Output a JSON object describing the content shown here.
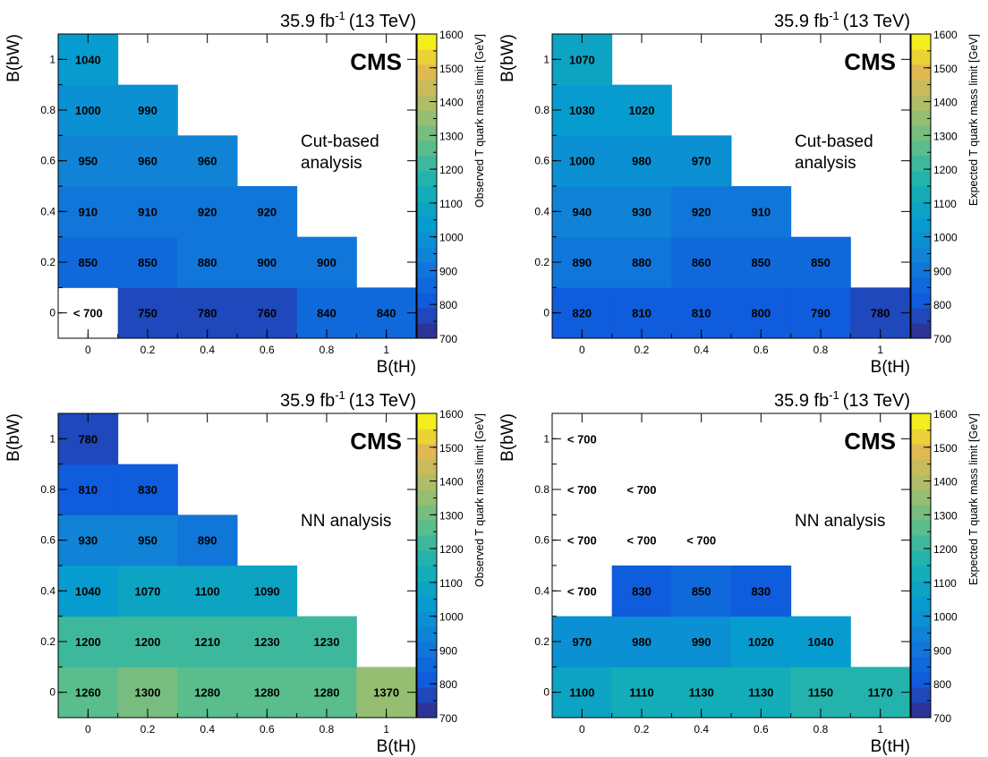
{
  "chart_data": [
    {
      "type": "heatmap",
      "lumi_main": "35.9 fb",
      "lumi_exp": "-1",
      "lumi_tail": "(13 TeV)",
      "experiment": "CMS",
      "annotation": [
        "Cut-based",
        "analysis"
      ],
      "xlabel": "B(tH)",
      "ylabel": "B(bW)",
      "zlabel": "Observed T quark mass limit [GeV]",
      "x_ticks": [
        "0",
        "0.2",
        "0.4",
        "0.6",
        "0.8",
        "1"
      ],
      "y_ticks": [
        "0",
        "0.2",
        "0.4",
        "0.6",
        "0.8",
        "1"
      ],
      "z_ticks": [
        "700",
        "800",
        "900",
        "1000",
        "1100",
        "1200",
        "1300",
        "1400",
        "1500",
        "1600"
      ],
      "zlim": [
        700,
        1600
      ],
      "cells": [
        {
          "x": 0,
          "y": 0,
          "label": "< 700",
          "value": null
        },
        {
          "x": 0.2,
          "y": 0,
          "label": "750",
          "value": 750
        },
        {
          "x": 0.4,
          "y": 0,
          "label": "780",
          "value": 780
        },
        {
          "x": 0.6,
          "y": 0,
          "label": "760",
          "value": 760
        },
        {
          "x": 0.8,
          "y": 0,
          "label": "840",
          "value": 840
        },
        {
          "x": 1,
          "y": 0,
          "label": "840",
          "value": 840
        },
        {
          "x": 0,
          "y": 0.2,
          "label": "850",
          "value": 850
        },
        {
          "x": 0.2,
          "y": 0.2,
          "label": "850",
          "value": 850
        },
        {
          "x": 0.4,
          "y": 0.2,
          "label": "880",
          "value": 880
        },
        {
          "x": 0.6,
          "y": 0.2,
          "label": "900",
          "value": 900
        },
        {
          "x": 0.8,
          "y": 0.2,
          "label": "900",
          "value": 900
        },
        {
          "x": 0,
          "y": 0.4,
          "label": "910",
          "value": 910
        },
        {
          "x": 0.2,
          "y": 0.4,
          "label": "910",
          "value": 910
        },
        {
          "x": 0.4,
          "y": 0.4,
          "label": "920",
          "value": 920
        },
        {
          "x": 0.6,
          "y": 0.4,
          "label": "920",
          "value": 920
        },
        {
          "x": 0,
          "y": 0.6,
          "label": "950",
          "value": 950
        },
        {
          "x": 0.2,
          "y": 0.6,
          "label": "960",
          "value": 960
        },
        {
          "x": 0.4,
          "y": 0.6,
          "label": "960",
          "value": 960
        },
        {
          "x": 0,
          "y": 0.8,
          "label": "1000",
          "value": 1000
        },
        {
          "x": 0.2,
          "y": 0.8,
          "label": "990",
          "value": 990
        },
        {
          "x": 0,
          "y": 1,
          "label": "1040",
          "value": 1040
        }
      ]
    },
    {
      "type": "heatmap",
      "lumi_main": "35.9 fb",
      "lumi_exp": "-1",
      "lumi_tail": "(13 TeV)",
      "experiment": "CMS",
      "annotation": [
        "Cut-based",
        "analysis"
      ],
      "xlabel": "B(tH)",
      "ylabel": "B(bW)",
      "zlabel": "Expected T quark mass limit [GeV]",
      "x_ticks": [
        "0",
        "0.2",
        "0.4",
        "0.6",
        "0.8",
        "1"
      ],
      "y_ticks": [
        "0",
        "0.2",
        "0.4",
        "0.6",
        "0.8",
        "1"
      ],
      "z_ticks": [
        "700",
        "800",
        "900",
        "1000",
        "1100",
        "1200",
        "1300",
        "1400",
        "1500",
        "1600"
      ],
      "zlim": [
        700,
        1600
      ],
      "cells": [
        {
          "x": 0,
          "y": 0,
          "label": "820",
          "value": 820
        },
        {
          "x": 0.2,
          "y": 0,
          "label": "810",
          "value": 810
        },
        {
          "x": 0.4,
          "y": 0,
          "label": "810",
          "value": 810
        },
        {
          "x": 0.6,
          "y": 0,
          "label": "800",
          "value": 800
        },
        {
          "x": 0.8,
          "y": 0,
          "label": "790",
          "value": 790
        },
        {
          "x": 1,
          "y": 0,
          "label": "780",
          "value": 780
        },
        {
          "x": 0,
          "y": 0.2,
          "label": "890",
          "value": 890
        },
        {
          "x": 0.2,
          "y": 0.2,
          "label": "880",
          "value": 880
        },
        {
          "x": 0.4,
          "y": 0.2,
          "label": "860",
          "value": 860
        },
        {
          "x": 0.6,
          "y": 0.2,
          "label": "850",
          "value": 850
        },
        {
          "x": 0.8,
          "y": 0.2,
          "label": "850",
          "value": 850
        },
        {
          "x": 0,
          "y": 0.4,
          "label": "940",
          "value": 940
        },
        {
          "x": 0.2,
          "y": 0.4,
          "label": "930",
          "value": 930
        },
        {
          "x": 0.4,
          "y": 0.4,
          "label": "920",
          "value": 920
        },
        {
          "x": 0.6,
          "y": 0.4,
          "label": "910",
          "value": 910
        },
        {
          "x": 0,
          "y": 0.6,
          "label": "1000",
          "value": 1000
        },
        {
          "x": 0.2,
          "y": 0.6,
          "label": "980",
          "value": 980
        },
        {
          "x": 0.4,
          "y": 0.6,
          "label": "970",
          "value": 970
        },
        {
          "x": 0,
          "y": 0.8,
          "label": "1030",
          "value": 1030
        },
        {
          "x": 0.2,
          "y": 0.8,
          "label": "1020",
          "value": 1020
        },
        {
          "x": 0,
          "y": 1,
          "label": "1070",
          "value": 1070
        }
      ]
    },
    {
      "type": "heatmap",
      "lumi_main": "35.9 fb",
      "lumi_exp": "-1",
      "lumi_tail": "(13 TeV)",
      "experiment": "CMS",
      "annotation": [
        "NN analysis"
      ],
      "xlabel": "B(tH)",
      "ylabel": "B(bW)",
      "zlabel": "Observed T quark mass limit [GeV]",
      "x_ticks": [
        "0",
        "0.2",
        "0.4",
        "0.6",
        "0.8",
        "1"
      ],
      "y_ticks": [
        "0",
        "0.2",
        "0.4",
        "0.6",
        "0.8",
        "1"
      ],
      "z_ticks": [
        "700",
        "800",
        "900",
        "1000",
        "1100",
        "1200",
        "1300",
        "1400",
        "1500",
        "1600"
      ],
      "zlim": [
        700,
        1600
      ],
      "cells": [
        {
          "x": 0,
          "y": 0,
          "label": "1260",
          "value": 1260
        },
        {
          "x": 0.2,
          "y": 0,
          "label": "1300",
          "value": 1300
        },
        {
          "x": 0.4,
          "y": 0,
          "label": "1280",
          "value": 1280
        },
        {
          "x": 0.6,
          "y": 0,
          "label": "1280",
          "value": 1280
        },
        {
          "x": 0.8,
          "y": 0,
          "label": "1280",
          "value": 1280
        },
        {
          "x": 1,
          "y": 0,
          "label": "1370",
          "value": 1370
        },
        {
          "x": 0,
          "y": 0.2,
          "label": "1200",
          "value": 1200
        },
        {
          "x": 0.2,
          "y": 0.2,
          "label": "1200",
          "value": 1200
        },
        {
          "x": 0.4,
          "y": 0.2,
          "label": "1210",
          "value": 1210
        },
        {
          "x": 0.6,
          "y": 0.2,
          "label": "1230",
          "value": 1230
        },
        {
          "x": 0.8,
          "y": 0.2,
          "label": "1230",
          "value": 1230
        },
        {
          "x": 0,
          "y": 0.4,
          "label": "1040",
          "value": 1040
        },
        {
          "x": 0.2,
          "y": 0.4,
          "label": "1070",
          "value": 1070
        },
        {
          "x": 0.4,
          "y": 0.4,
          "label": "1100",
          "value": 1100
        },
        {
          "x": 0.6,
          "y": 0.4,
          "label": "1090",
          "value": 1090
        },
        {
          "x": 0,
          "y": 0.6,
          "label": "930",
          "value": 930
        },
        {
          "x": 0.2,
          "y": 0.6,
          "label": "950",
          "value": 950
        },
        {
          "x": 0.4,
          "y": 0.6,
          "label": "890",
          "value": 890
        },
        {
          "x": 0,
          "y": 0.8,
          "label": "810",
          "value": 810
        },
        {
          "x": 0.2,
          "y": 0.8,
          "label": "830",
          "value": 830
        },
        {
          "x": 0,
          "y": 1,
          "label": "780",
          "value": 780
        }
      ]
    },
    {
      "type": "heatmap",
      "lumi_main": "35.9 fb",
      "lumi_exp": "-1",
      "lumi_tail": "(13 TeV)",
      "experiment": "CMS",
      "annotation": [
        "NN analysis"
      ],
      "xlabel": "B(tH)",
      "ylabel": "B(bW)",
      "zlabel": "Expected T quark mass limit [GeV]",
      "x_ticks": [
        "0",
        "0.2",
        "0.4",
        "0.6",
        "0.8",
        "1"
      ],
      "y_ticks": [
        "0",
        "0.2",
        "0.4",
        "0.6",
        "0.8",
        "1"
      ],
      "z_ticks": [
        "700",
        "800",
        "900",
        "1000",
        "1100",
        "1200",
        "1300",
        "1400",
        "1500",
        "1600"
      ],
      "zlim": [
        700,
        1600
      ],
      "cells": [
        {
          "x": 0,
          "y": 0,
          "label": "1100",
          "value": 1100
        },
        {
          "x": 0.2,
          "y": 0,
          "label": "1110",
          "value": 1110
        },
        {
          "x": 0.4,
          "y": 0,
          "label": "1130",
          "value": 1130
        },
        {
          "x": 0.6,
          "y": 0,
          "label": "1130",
          "value": 1130
        },
        {
          "x": 0.8,
          "y": 0,
          "label": "1150",
          "value": 1150
        },
        {
          "x": 1,
          "y": 0,
          "label": "1170",
          "value": 1170
        },
        {
          "x": 0,
          "y": 0.2,
          "label": "970",
          "value": 970
        },
        {
          "x": 0.2,
          "y": 0.2,
          "label": "980",
          "value": 980
        },
        {
          "x": 0.4,
          "y": 0.2,
          "label": "990",
          "value": 990
        },
        {
          "x": 0.6,
          "y": 0.2,
          "label": "1020",
          "value": 1020
        },
        {
          "x": 0.8,
          "y": 0.2,
          "label": "1040",
          "value": 1040
        },
        {
          "x": 0,
          "y": 0.4,
          "label": "< 700",
          "value": null
        },
        {
          "x": 0.2,
          "y": 0.4,
          "label": "830",
          "value": 830
        },
        {
          "x": 0.4,
          "y": 0.4,
          "label": "850",
          "value": 850
        },
        {
          "x": 0.6,
          "y": 0.4,
          "label": "830",
          "value": 830
        },
        {
          "x": 0,
          "y": 0.6,
          "label": "< 700",
          "value": null
        },
        {
          "x": 0.2,
          "y": 0.6,
          "label": "< 700",
          "value": null
        },
        {
          "x": 0.4,
          "y": 0.6,
          "label": "< 700",
          "value": null
        },
        {
          "x": 0,
          "y": 0.8,
          "label": "< 700",
          "value": null
        },
        {
          "x": 0.2,
          "y": 0.8,
          "label": "< 700",
          "value": null
        },
        {
          "x": 0,
          "y": 1,
          "label": "< 700",
          "value": null
        }
      ]
    }
  ]
}
